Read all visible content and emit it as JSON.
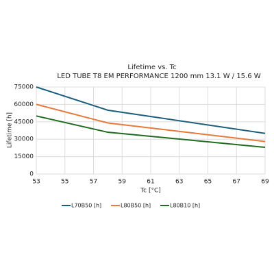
{
  "chart_data": {
    "type": "line",
    "title": "Lifetime vs. Tc",
    "subtitle": "LED TUBE T8 EM PERFORMANCE 1200 mm 13.1 W / 15.6 W",
    "x_label": "Tc [°C]",
    "y_label": "Lifetime [h]",
    "x": [
      53,
      58,
      69
    ],
    "series": [
      {
        "name": "L70B50 [h]",
        "color": "#1b5e7b",
        "values": [
          75000,
          55000,
          35000
        ]
      },
      {
        "name": "L80B50 [h]",
        "color": "#e8793a",
        "values": [
          60000,
          44000,
          28000
        ]
      },
      {
        "name": "L80B10 [h]",
        "color": "#1f6b1f",
        "values": [
          50000,
          36000,
          23000
        ]
      }
    ],
    "xlim": [
      53,
      69
    ],
    "xticks": [
      53,
      55,
      57,
      59,
      61,
      63,
      65,
      67,
      69
    ],
    "ylim": [
      0,
      75000
    ],
    "yticks": [
      0,
      15000,
      30000,
      45000,
      60000,
      75000
    ],
    "grid": true,
    "legend": "bottom"
  }
}
